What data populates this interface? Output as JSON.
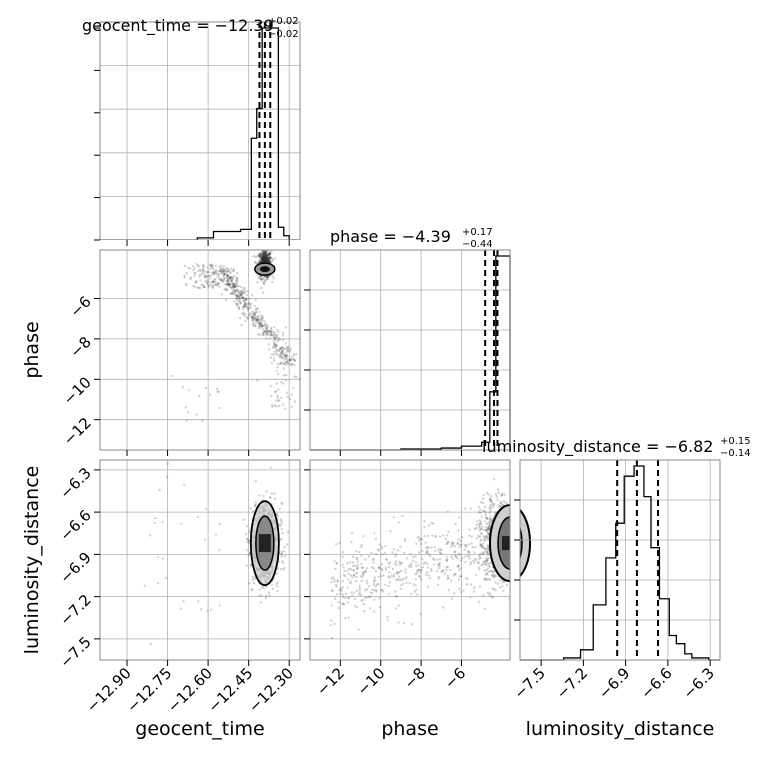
{
  "chart_data": [
    {
      "type": "histogram",
      "panel": "geocent_time",
      "title": "geocent_time = −12.39",
      "title_sup": "+0.02",
      "title_sub": "−0.02",
      "xlim": [
        -13.0,
        -12.26
      ],
      "bins_edges": [
        -12.64,
        -12.58,
        -12.52,
        -12.48,
        -12.44,
        -12.42,
        -12.4,
        -12.38,
        -12.36,
        -12.34,
        -12.32,
        -12.3,
        -12.28
      ],
      "counts": [
        1,
        4,
        4,
        5,
        48,
        62,
        100,
        100,
        100,
        6,
        2,
        0
      ],
      "quantile_lines": [
        -12.41,
        -12.39,
        -12.37
      ],
      "grid": true
    },
    {
      "type": "histogram",
      "panel": "phase",
      "title": "phase = −4.39",
      "title_sup": "+0.17",
      "title_sub": "−0.44",
      "xlim": [
        -13.5,
        -3.6
      ],
      "bins_edges": [
        -9.0,
        -7.0,
        -6.0,
        -5.0,
        -4.6,
        -4.3,
        -4.0,
        -3.8,
        -3.6
      ],
      "counts": [
        0.5,
        1,
        2,
        4,
        30,
        100,
        100,
        100
      ],
      "quantile_lines": [
        -4.83,
        -4.39,
        -4.22
      ],
      "grid": true
    },
    {
      "type": "histogram",
      "panel": "luminosity_distance",
      "title": "luminosity_distance = −6.82",
      "title_sup": "+0.15",
      "title_sub": "−0.14",
      "xlim": [
        -7.65,
        -6.23
      ],
      "xticks": [
        -7.5,
        -7.2,
        -6.9,
        -6.6,
        -6.3
      ],
      "bins_edges": [
        -7.34,
        -7.22,
        -7.13,
        -7.04,
        -6.97,
        -6.91,
        -6.84,
        -6.77,
        -6.72,
        -6.66,
        -6.59,
        -6.54,
        -6.48,
        -6.43,
        -6.37,
        -6.31
      ],
      "counts": [
        1,
        5,
        27,
        50,
        67,
        90,
        95,
        80,
        55,
        30,
        12,
        8,
        3,
        1,
        1
      ],
      "quantile_lines": [
        -6.96,
        -6.82,
        -6.67
      ],
      "grid": true
    },
    {
      "type": "scatter",
      "panel": "phase vs geocent_time",
      "x_label": "geocent_time",
      "y_label": "phase",
      "xlim": [
        -13.0,
        -12.26
      ],
      "ylim": [
        -13.5,
        -3.6
      ],
      "yticks": [
        -6,
        -8,
        -10,
        -12
      ],
      "density_peak": {
        "x": -12.39,
        "y": -4.4
      },
      "grid": true
    },
    {
      "type": "scatter",
      "panel": "luminosity_distance vs geocent_time",
      "xlim": [
        -13.0,
        -12.26
      ],
      "ylim": [
        -7.65,
        -6.23
      ],
      "xticks": [
        -12.9,
        -12.75,
        -12.6,
        -12.45,
        -12.3
      ],
      "yticks": [
        -6.3,
        -6.6,
        -6.9,
        -7.2,
        -7.5
      ],
      "density_peak": {
        "x": -12.39,
        "y": -6.82
      },
      "grid": true
    },
    {
      "type": "scatter",
      "panel": "luminosity_distance vs phase",
      "xlim": [
        -13.5,
        -3.6
      ],
      "ylim": [
        -7.65,
        -6.23
      ],
      "xticks": [
        -12,
        -10,
        -8,
        -6
      ],
      "density_peak": {
        "x": -4.0,
        "y": -6.82
      },
      "grid": true
    }
  ],
  "labels": {
    "x0": "geocent_time",
    "x1": "phase",
    "x2": "luminosity_distance",
    "y1": "phase",
    "y2": "luminosity_distance"
  },
  "ticklabels": {
    "geocent_time": [
      "−12.90",
      "−12.75",
      "−12.60",
      "−12.45",
      "−12.30"
    ],
    "phase_x": [
      "−12",
      "−10",
      "−8",
      "−6"
    ],
    "phase_y": [
      "−6",
      "−8",
      "−10",
      "−12"
    ],
    "lumdist_y": [
      "−6.3",
      "−6.6",
      "−6.9",
      "−7.2",
      "−7.5"
    ],
    "lumdist_x": [
      "−7.5",
      "−7.2",
      "−6.9",
      "−6.6",
      "−6.3"
    ]
  }
}
